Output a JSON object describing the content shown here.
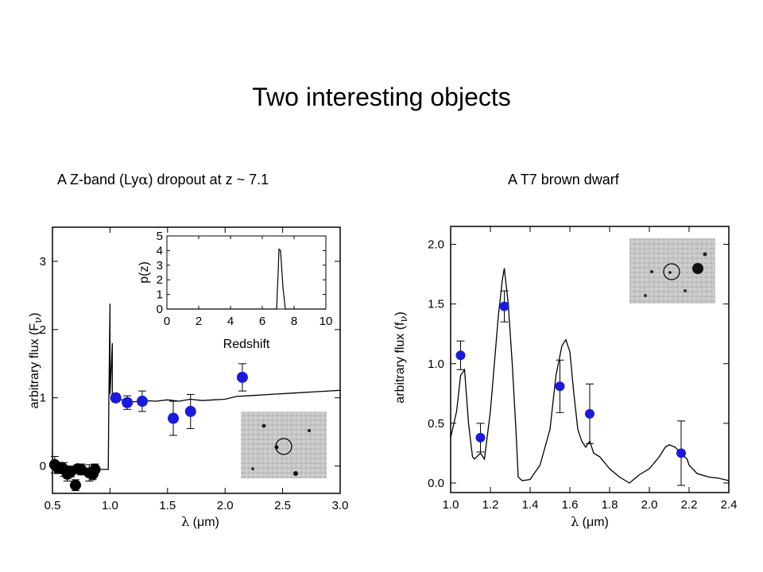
{
  "slide": {
    "title": "Two interesting objects",
    "left_caption": {
      "prefix": "A Z-band (Ly",
      "greek": "α",
      "suffix": ") dropout at z ~ 7.1"
    },
    "right_caption": "A T7 brown dwarf"
  },
  "chart_data": [
    {
      "type": "line",
      "name": "z-dropout SED",
      "xlabel": {
        "greek": "λ",
        "text": " (μm)"
      },
      "ylabel": {
        "prefix": "arbitrary flux (F",
        "sub": "ν",
        "suffix": ")"
      },
      "xlim": [
        0.5,
        3.0
      ],
      "ylim": [
        -0.4,
        3.5
      ],
      "xticks": [
        "0.5",
        "1.0",
        "1.5",
        "2.0",
        "2.5",
        "3.0"
      ],
      "xtick_values": [
        0.5,
        1.0,
        1.5,
        2.0,
        2.5,
        3.0
      ],
      "yticks": [
        "0",
        "1",
        "2",
        "3"
      ],
      "ytick_values": [
        0,
        1,
        2,
        3
      ],
      "model_x": [
        0.5,
        0.95,
        0.985,
        0.99,
        1.0,
        1.0,
        1.02,
        1.02,
        1.05,
        1.1,
        1.2,
        1.3,
        1.4,
        1.5,
        1.6,
        1.7,
        1.8,
        1.9,
        2.0,
        2.1,
        2.2,
        2.4,
        2.6,
        2.8,
        3.0
      ],
      "model_y": [
        -0.05,
        -0.05,
        -0.05,
        1.0,
        2.38,
        1.05,
        1.8,
        0.98,
        0.96,
        0.97,
        0.94,
        0.96,
        0.95,
        0.97,
        0.95,
        0.98,
        0.96,
        0.97,
        0.98,
        1.02,
        1.03,
        1.05,
        1.07,
        1.09,
        1.11
      ],
      "series": [
        {
          "color": "#000000",
          "x": [
            0.52,
            0.55,
            0.58,
            0.6,
            0.63,
            0.66,
            0.7,
            0.72,
            0.75,
            0.82,
            0.85,
            0.87
          ],
          "y": [
            0.02,
            -0.03,
            -0.02,
            -0.05,
            -0.12,
            -0.08,
            -0.28,
            -0.04,
            -0.05,
            -0.1,
            -0.12,
            -0.05
          ],
          "err": [
            0.12,
            0.08,
            0.06,
            0.1,
            0.1,
            0.08,
            0.08,
            0.06,
            0.08,
            0.12,
            0.08,
            0.08
          ]
        },
        {
          "color": "#1a1adc",
          "x": [
            1.05,
            1.15,
            1.28,
            1.55,
            1.7,
            2.15
          ],
          "y": [
            1.0,
            0.93,
            0.95,
            0.7,
            0.8,
            1.3
          ],
          "err": [
            0.06,
            0.1,
            0.15,
            0.25,
            0.25,
            0.2
          ]
        }
      ],
      "inset_chart": {
        "type": "line",
        "xlabel": "Redshift",
        "ylabel": "p(z)",
        "xlim": [
          0,
          10
        ],
        "ylim": [
          0,
          5
        ],
        "xticks": [
          "0",
          "2",
          "4",
          "6",
          "8",
          "10"
        ],
        "xtick_values": [
          0,
          2,
          4,
          6,
          8,
          10
        ],
        "yticks": [
          "0",
          "1",
          "2",
          "3",
          "4",
          "5"
        ],
        "ytick_values": [
          0,
          1,
          2,
          3,
          4,
          5
        ],
        "x": [
          0,
          6.9,
          7.0,
          7.05,
          7.15,
          7.3,
          7.45,
          10
        ],
        "y": [
          0,
          0,
          2.5,
          4.1,
          4.0,
          1.5,
          0,
          0
        ]
      }
    },
    {
      "type": "line",
      "name": "T7 brown dwarf spectrum",
      "xlabel": {
        "greek": "λ",
        "text": " (μm)"
      },
      "ylabel": {
        "prefix": "arbitrary flux (f",
        "sub": "ν",
        "suffix": ")"
      },
      "xlim": [
        1.0,
        2.4
      ],
      "ylim": [
        -0.08,
        2.15
      ],
      "xticks": [
        "1.0",
        "1.2",
        "1.4",
        "1.6",
        "1.8",
        "2.0",
        "2.2",
        "2.4"
      ],
      "xtick_values": [
        1.0,
        1.2,
        1.4,
        1.6,
        1.8,
        2.0,
        2.2,
        2.4
      ],
      "yticks": [
        "0.0",
        "0.5",
        "1.0",
        "1.5",
        "2.0"
      ],
      "ytick_values": [
        0.0,
        0.5,
        1.0,
        1.5,
        2.0
      ],
      "model_x": [
        1.0,
        1.03,
        1.05,
        1.07,
        1.09,
        1.11,
        1.12,
        1.15,
        1.17,
        1.2,
        1.22,
        1.24,
        1.26,
        1.27,
        1.29,
        1.31,
        1.33,
        1.34,
        1.36,
        1.4,
        1.45,
        1.5,
        1.53,
        1.56,
        1.58,
        1.6,
        1.62,
        1.64,
        1.66,
        1.68,
        1.7,
        1.72,
        1.75,
        1.8,
        1.85,
        1.9,
        1.95,
        2.0,
        2.05,
        2.08,
        2.1,
        2.13,
        2.16,
        2.19,
        2.2,
        2.24,
        2.3,
        2.35,
        2.4
      ],
      "model_y": [
        0.38,
        0.6,
        0.9,
        0.95,
        0.5,
        0.22,
        0.2,
        0.25,
        0.2,
        0.6,
        1.0,
        1.4,
        1.7,
        1.8,
        1.5,
        1.0,
        0.4,
        0.05,
        0.02,
        0.03,
        0.15,
        0.45,
        0.9,
        1.15,
        1.2,
        1.1,
        0.75,
        0.45,
        0.35,
        0.3,
        0.35,
        0.25,
        0.22,
        0.12,
        0.05,
        0.0,
        0.07,
        0.12,
        0.22,
        0.3,
        0.32,
        0.3,
        0.25,
        0.2,
        0.15,
        0.08,
        0.05,
        0.04,
        0.02
      ],
      "series": [
        {
          "color": "#1a1adc",
          "x": [
            1.05,
            1.15,
            1.27,
            1.55,
            1.7,
            2.16
          ],
          "y": [
            1.07,
            0.38,
            1.48,
            0.81,
            0.58,
            0.25
          ],
          "err": [
            0.12,
            0.12,
            0.13,
            0.22,
            0.25,
            0.27
          ]
        }
      ]
    }
  ]
}
